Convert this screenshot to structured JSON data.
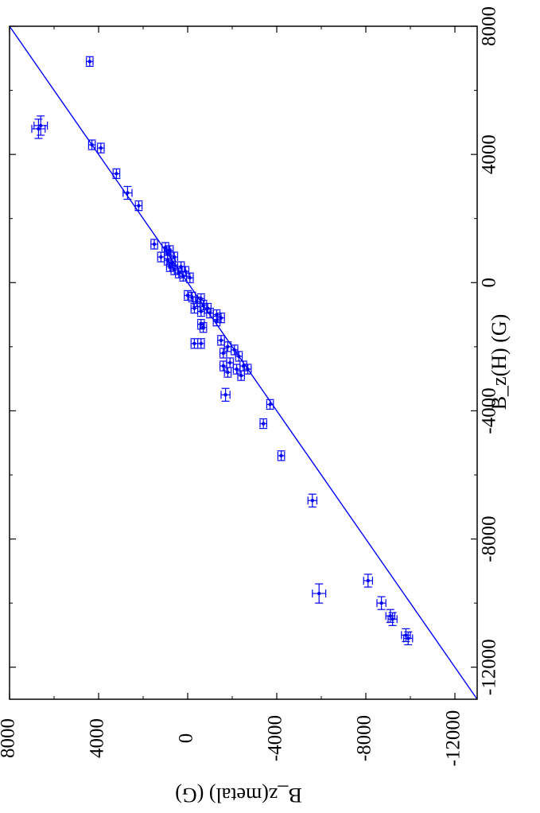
{
  "chart_data": {
    "type": "scatter",
    "xlabel": "B_z(H)  (G)",
    "ylabel": "B_z(metal)  (G)",
    "xlim": [
      -13000,
      8000
    ],
    "ylim": [
      -13000,
      8000
    ],
    "x_ticks": [
      "-12000",
      "-8000",
      "-4000",
      "0",
      "4000",
      "8000"
    ],
    "y_ticks": [
      "8000",
      "4000",
      "0",
      "-4000",
      "-8000",
      "-12000"
    ],
    "grid": false,
    "colors": {
      "series": "#0000ff",
      "axes": "#000000"
    },
    "orientation_note": "",
    "fit_line": {
      "name": "",
      "slope": 1.0,
      "intercept": 0.0
    },
    "series": [
      {
        "name": "",
        "points": [
          {
            "x": 6900,
            "y": 4400,
            "xerr": 150,
            "yerr": 150
          },
          {
            "x": 4800,
            "y": 6700,
            "xerr": 300,
            "yerr": 300
          },
          {
            "x": 4900,
            "y": 6600,
            "xerr": 300,
            "yerr": 300
          },
          {
            "x": 4300,
            "y": 4300,
            "xerr": 150,
            "yerr": 150
          },
          {
            "x": 4200,
            "y": 3900,
            "xerr": 150,
            "yerr": 150
          },
          {
            "x": 3400,
            "y": 3200,
            "xerr": 150,
            "yerr": 150
          },
          {
            "x": 2800,
            "y": 2700,
            "xerr": 200,
            "yerr": 200
          },
          {
            "x": 2400,
            "y": 2200,
            "xerr": 150,
            "yerr": 150
          },
          {
            "x": 1200,
            "y": 1500,
            "xerr": 150,
            "yerr": 150
          },
          {
            "x": 1100,
            "y": 1000,
            "xerr": 150,
            "yerr": 150
          },
          {
            "x": 1000,
            "y": 800,
            "xerr": 150,
            "yerr": 150
          },
          {
            "x": 900,
            "y": 900,
            "xerr": 150,
            "yerr": 150
          },
          {
            "x": 800,
            "y": 1200,
            "xerr": 150,
            "yerr": 150
          },
          {
            "x": 800,
            "y": 600,
            "xerr": 150,
            "yerr": 150
          },
          {
            "x": 700,
            "y": 900,
            "xerr": 150,
            "yerr": 150
          },
          {
            "x": 600,
            "y": 700,
            "xerr": 150,
            "yerr": 150
          },
          {
            "x": 500,
            "y": 300,
            "xerr": 150,
            "yerr": 150
          },
          {
            "x": 500,
            "y": 800,
            "xerr": 150,
            "yerr": 150
          },
          {
            "x": 400,
            "y": 600,
            "xerr": 150,
            "yerr": 150
          },
          {
            "x": 350,
            "y": 100,
            "xerr": 150,
            "yerr": 150
          },
          {
            "x": 300,
            "y": 400,
            "xerr": 150,
            "yerr": 150
          },
          {
            "x": 200,
            "y": 200,
            "xerr": 150,
            "yerr": 150
          },
          {
            "x": 150,
            "y": -100,
            "xerr": 150,
            "yerr": 150
          },
          {
            "x": -400,
            "y": 0,
            "xerr": 150,
            "yerr": 150
          },
          {
            "x": -450,
            "y": -200,
            "xerr": 150,
            "yerr": 150
          },
          {
            "x": -500,
            "y": -600,
            "xerr": 150,
            "yerr": 150
          },
          {
            "x": -600,
            "y": -400,
            "xerr": 150,
            "yerr": 150
          },
          {
            "x": -700,
            "y": -700,
            "xerr": 150,
            "yerr": 150
          },
          {
            "x": -800,
            "y": -300,
            "xerr": 150,
            "yerr": 150
          },
          {
            "x": -800,
            "y": -900,
            "xerr": 150,
            "yerr": 150
          },
          {
            "x": -900,
            "y": -600,
            "xerr": 150,
            "yerr": 150
          },
          {
            "x": -950,
            "y": -1000,
            "xerr": 150,
            "yerr": 150
          },
          {
            "x": -1000,
            "y": -1300,
            "xerr": 150,
            "yerr": 150
          },
          {
            "x": -1100,
            "y": -1500,
            "xerr": 150,
            "yerr": 150
          },
          {
            "x": -1200,
            "y": -1300,
            "xerr": 150,
            "yerr": 150
          },
          {
            "x": -1300,
            "y": -600,
            "xerr": 150,
            "yerr": 150
          },
          {
            "x": -1400,
            "y": -700,
            "xerr": 150,
            "yerr": 150
          },
          {
            "x": -1900,
            "y": -300,
            "xerr": 150,
            "yerr": 150
          },
          {
            "x": -1900,
            "y": -600,
            "xerr": 150,
            "yerr": 150
          },
          {
            "x": -1800,
            "y": -1500,
            "xerr": 150,
            "yerr": 150
          },
          {
            "x": -2000,
            "y": -1800,
            "xerr": 150,
            "yerr": 150
          },
          {
            "x": -2100,
            "y": -2100,
            "xerr": 150,
            "yerr": 150
          },
          {
            "x": -2200,
            "y": -1600,
            "xerr": 150,
            "yerr": 150
          },
          {
            "x": -2300,
            "y": -2300,
            "xerr": 150,
            "yerr": 150
          },
          {
            "x": -2500,
            "y": -1900,
            "xerr": 150,
            "yerr": 150
          },
          {
            "x": -2600,
            "y": -1600,
            "xerr": 150,
            "yerr": 150
          },
          {
            "x": -2700,
            "y": -2200,
            "xerr": 150,
            "yerr": 150
          },
          {
            "x": -2600,
            "y": -2500,
            "xerr": 150,
            "yerr": 150
          },
          {
            "x": -2700,
            "y": -2700,
            "xerr": 150,
            "yerr": 150
          },
          {
            "x": -2800,
            "y": -1800,
            "xerr": 150,
            "yerr": 150
          },
          {
            "x": -2900,
            "y": -2400,
            "xerr": 150,
            "yerr": 150
          },
          {
            "x": -3500,
            "y": -1700,
            "xerr": 200,
            "yerr": 200
          },
          {
            "x": -3800,
            "y": -3700,
            "xerr": 150,
            "yerr": 150
          },
          {
            "x": -4400,
            "y": -3400,
            "xerr": 150,
            "yerr": 150
          },
          {
            "x": -5400,
            "y": -4200,
            "xerr": 150,
            "yerr": 150
          },
          {
            "x": -6800,
            "y": -5600,
            "xerr": 200,
            "yerr": 200
          },
          {
            "x": -9700,
            "y": -5900,
            "xerr": 300,
            "yerr": 300
          },
          {
            "x": -9300,
            "y": -8100,
            "xerr": 200,
            "yerr": 200
          },
          {
            "x": -10000,
            "y": -8700,
            "xerr": 200,
            "yerr": 200
          },
          {
            "x": -10400,
            "y": -9100,
            "xerr": 200,
            "yerr": 200
          },
          {
            "x": -10500,
            "y": -9200,
            "xerr": 200,
            "yerr": 200
          },
          {
            "x": -11000,
            "y": -9800,
            "xerr": 200,
            "yerr": 200
          },
          {
            "x": -11100,
            "y": -9900,
            "xerr": 200,
            "yerr": 200
          }
        ]
      }
    ]
  }
}
